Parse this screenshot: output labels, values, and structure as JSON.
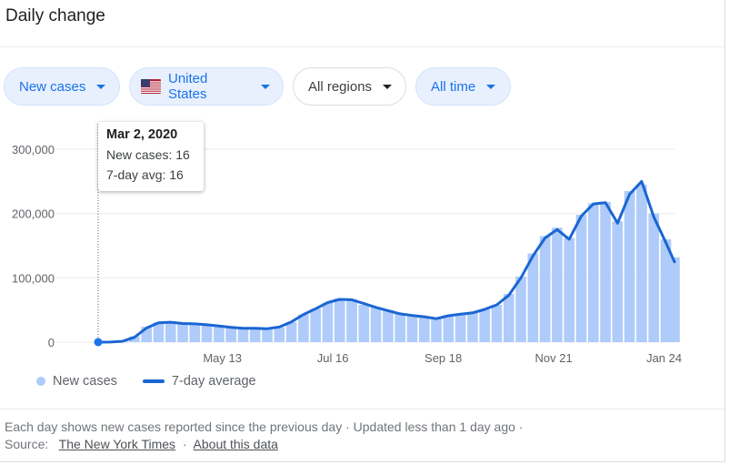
{
  "card": {
    "title": "Daily change"
  },
  "filters": {
    "metric": "New cases",
    "country": "United States",
    "region": "All regions",
    "period": "All time"
  },
  "tooltip": {
    "date": "Mar 2, 2020",
    "new_cases": "New cases: 16",
    "avg": "7-day avg: 16"
  },
  "legend": {
    "new_cases": "New cases",
    "avg": "7-day average"
  },
  "footer": {
    "line1": "Each day shows new cases reported since the previous day · Updated less than 1 day ago  ·",
    "source_label": "Source:",
    "source_link": "The New York Times",
    "sep": "·",
    "about_link": "About this data"
  },
  "colors": {
    "bars": "#aecbfa",
    "avg_line": "#1a66d2",
    "accent": "#1a73e8",
    "grid": "#ebebeb"
  },
  "chart_data": {
    "type": "bar",
    "title": "",
    "xlabel": "",
    "ylabel": "",
    "ylim": [
      0,
      300000
    ],
    "x_range": [
      "2020-03-02",
      "2021-01-30"
    ],
    "y_ticks": [
      0,
      100000,
      200000,
      300000
    ],
    "y_tick_labels": [
      "0",
      "100,000",
      "200,000",
      "300,000"
    ],
    "x_tick_labels": [
      {
        "date": "2020-05-13",
        "label": "May 13"
      },
      {
        "date": "2020-07-16",
        "label": "Jul 16"
      },
      {
        "date": "2020-09-18",
        "label": "Sep 18"
      },
      {
        "date": "2020-11-21",
        "label": "Nov 21"
      },
      {
        "date": "2021-01-24",
        "label": "Jan 24"
      }
    ],
    "grid": true,
    "legend": "bottom-left",
    "highlight": {
      "date": "2020-03-02",
      "new_cases": 16,
      "avg": 16
    },
    "series": [
      {
        "name": "New cases",
        "type": "bar",
        "points": [
          [
            "2020-03-02",
            16
          ],
          [
            "2020-03-09",
            150
          ],
          [
            "2020-03-16",
            1500
          ],
          [
            "2020-03-23",
            9000
          ],
          [
            "2020-03-30",
            24000
          ],
          [
            "2020-04-06",
            31000
          ],
          [
            "2020-04-13",
            30500
          ],
          [
            "2020-04-20",
            29000
          ],
          [
            "2020-04-27",
            28000
          ],
          [
            "2020-05-04",
            26500
          ],
          [
            "2020-05-11",
            24500
          ],
          [
            "2020-05-18",
            22500
          ],
          [
            "2020-05-25",
            21000
          ],
          [
            "2020-06-01",
            21500
          ],
          [
            "2020-06-08",
            21000
          ],
          [
            "2020-06-15",
            23000
          ],
          [
            "2020-06-22",
            31000
          ],
          [
            "2020-06-29",
            43000
          ],
          [
            "2020-07-06",
            52000
          ],
          [
            "2020-07-13",
            61000
          ],
          [
            "2020-07-20",
            68000
          ],
          [
            "2020-07-27",
            66000
          ],
          [
            "2020-08-03",
            58000
          ],
          [
            "2020-08-10",
            54000
          ],
          [
            "2020-08-17",
            50000
          ],
          [
            "2020-08-24",
            44000
          ],
          [
            "2020-08-31",
            41000
          ],
          [
            "2020-09-07",
            40000
          ],
          [
            "2020-09-14",
            37000
          ],
          [
            "2020-09-21",
            42000
          ],
          [
            "2020-09-28",
            44000
          ],
          [
            "2020-10-05",
            46000
          ],
          [
            "2020-10-12",
            51000
          ],
          [
            "2020-10-19",
            58000
          ],
          [
            "2020-10-26",
            75000
          ],
          [
            "2020-11-02",
            102000
          ],
          [
            "2020-11-09",
            138000
          ],
          [
            "2020-11-16",
            165000
          ],
          [
            "2020-11-23",
            178000
          ],
          [
            "2020-11-30",
            162000
          ],
          [
            "2020-12-07",
            198000
          ],
          [
            "2020-12-14",
            216000
          ],
          [
            "2020-12-21",
            218000
          ],
          [
            "2020-12-28",
            188000
          ],
          [
            "2021-01-04",
            235000
          ],
          [
            "2021-01-11",
            245000
          ],
          [
            "2021-01-18",
            200000
          ],
          [
            "2021-01-25",
            160000
          ],
          [
            "2021-01-30",
            132000
          ]
        ]
      },
      {
        "name": "7-day average",
        "type": "line",
        "points": [
          [
            "2020-03-02",
            16
          ],
          [
            "2020-03-09",
            150
          ],
          [
            "2020-03-16",
            1300
          ],
          [
            "2020-03-23",
            7500
          ],
          [
            "2020-03-30",
            22000
          ],
          [
            "2020-04-06",
            30000
          ],
          [
            "2020-04-13",
            31000
          ],
          [
            "2020-04-20",
            29000
          ],
          [
            "2020-04-27",
            28500
          ],
          [
            "2020-05-04",
            27000
          ],
          [
            "2020-05-11",
            25000
          ],
          [
            "2020-05-18",
            23000
          ],
          [
            "2020-05-25",
            21500
          ],
          [
            "2020-06-01",
            21500
          ],
          [
            "2020-06-08",
            21000
          ],
          [
            "2020-06-15",
            23500
          ],
          [
            "2020-06-22",
            31500
          ],
          [
            "2020-06-29",
            43000
          ],
          [
            "2020-07-06",
            52000
          ],
          [
            "2020-07-13",
            61500
          ],
          [
            "2020-07-20",
            66500
          ],
          [
            "2020-07-27",
            66000
          ],
          [
            "2020-08-03",
            60000
          ],
          [
            "2020-08-10",
            54000
          ],
          [
            "2020-08-17",
            49000
          ],
          [
            "2020-08-24",
            44000
          ],
          [
            "2020-08-31",
            41500
          ],
          [
            "2020-09-07",
            39500
          ],
          [
            "2020-09-14",
            36500
          ],
          [
            "2020-09-21",
            41000
          ],
          [
            "2020-09-28",
            43500
          ],
          [
            "2020-10-05",
            45500
          ],
          [
            "2020-10-12",
            51000
          ],
          [
            "2020-10-19",
            58000
          ],
          [
            "2020-10-26",
            73000
          ],
          [
            "2020-11-02",
            100000
          ],
          [
            "2020-11-09",
            134000
          ],
          [
            "2020-11-16",
            162000
          ],
          [
            "2020-11-23",
            175000
          ],
          [
            "2020-11-30",
            160000
          ],
          [
            "2020-12-07",
            196000
          ],
          [
            "2020-12-14",
            215000
          ],
          [
            "2020-12-21",
            217000
          ],
          [
            "2020-12-28",
            185000
          ],
          [
            "2021-01-04",
            230000
          ],
          [
            "2021-01-11",
            250000
          ],
          [
            "2021-01-18",
            195000
          ],
          [
            "2021-01-25",
            155000
          ],
          [
            "2021-01-30",
            125000
          ]
        ]
      }
    ]
  }
}
